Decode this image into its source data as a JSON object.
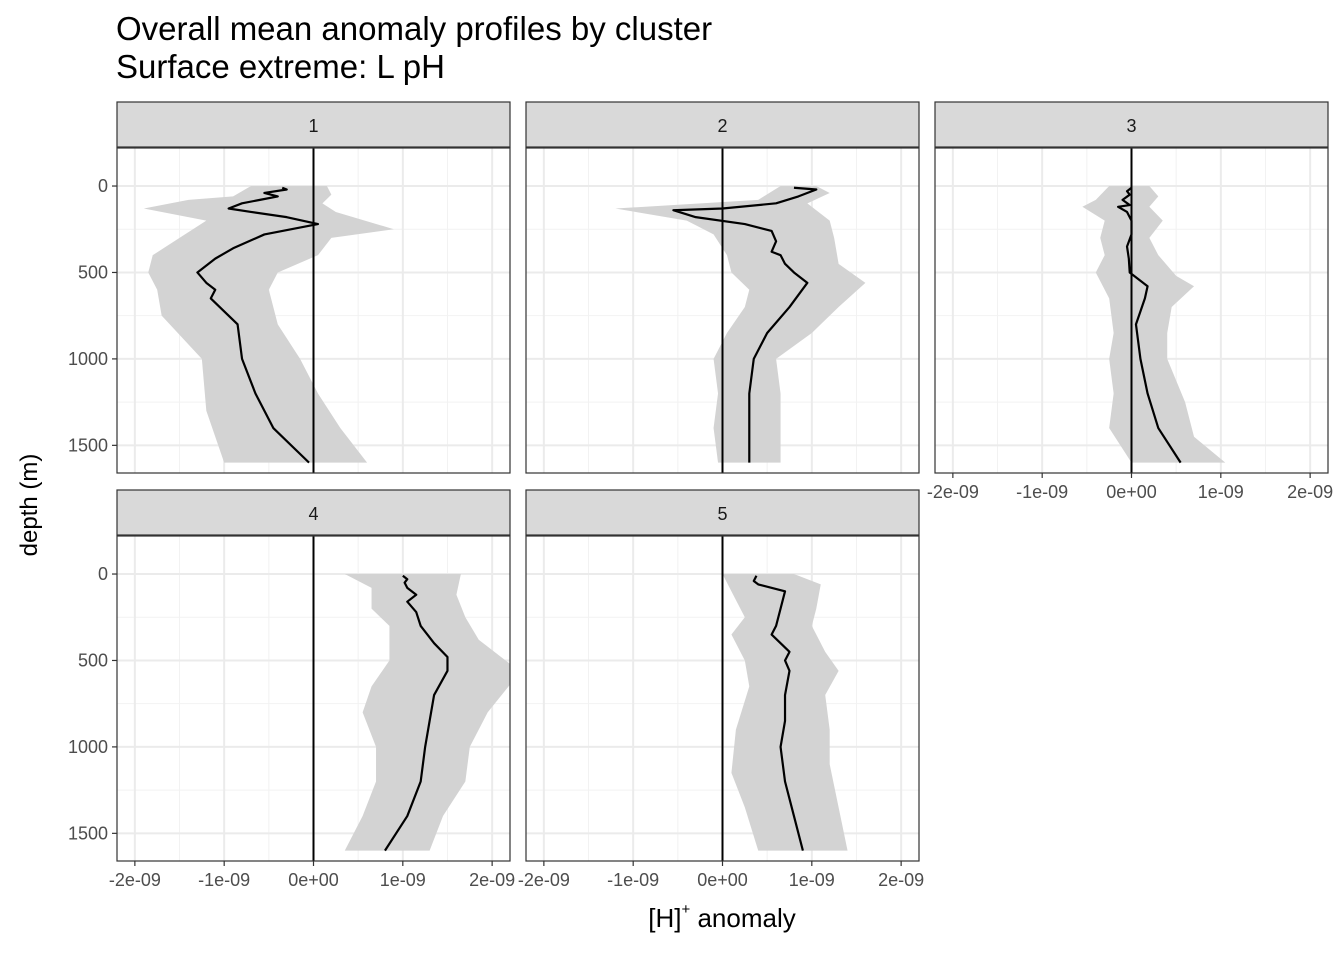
{
  "chart_data": {
    "type": "line",
    "title": "Overall mean anomaly profiles by cluster",
    "subtitle": "Surface extreme: L pH",
    "xlabel_main": "[H]",
    "xlabel_sup": "+",
    "xlabel_rest": " anomaly",
    "ylabel": "depth (m)",
    "xlim": [
      -2.2e-09,
      2.2e-09
    ],
    "ylim": [
      1660,
      -220
    ],
    "y_reversed": true,
    "x_ticks": [
      -2e-09,
      -1e-09,
      0,
      1e-09,
      2e-09
    ],
    "x_tick_labels": [
      "-2e-09",
      "-1e-09",
      "0e+00",
      "1e-09",
      "2e-09"
    ],
    "y_ticks": [
      0,
      500,
      1000,
      1500
    ],
    "y_tick_labels": [
      "0",
      "500",
      "1000",
      "1500"
    ],
    "vline_x": 0,
    "panels": [
      {
        "label": "1",
        "mean": [
          [
            -3.5e-10,
            10
          ],
          [
            -3e-10,
            20
          ],
          [
            -5.5e-10,
            40
          ],
          [
            -4e-10,
            60
          ],
          [
            -6e-10,
            80
          ],
          [
            -8e-10,
            100
          ],
          [
            -9.5e-10,
            130
          ],
          [
            -7e-10,
            150
          ],
          [
            -3e-10,
            180
          ],
          [
            5e-11,
            220
          ],
          [
            -5.5e-10,
            280
          ],
          [
            -9e-10,
            360
          ],
          [
            -1.1e-09,
            420
          ],
          [
            -1.3e-09,
            500
          ],
          [
            -1.2e-09,
            560
          ],
          [
            -1.1e-09,
            600
          ],
          [
            -1.15e-09,
            650
          ],
          [
            -1.05e-09,
            700
          ],
          [
            -8.5e-10,
            800
          ],
          [
            -8e-10,
            1000
          ],
          [
            -6.5e-10,
            1200
          ],
          [
            -4.5e-10,
            1400
          ],
          [
            -5e-11,
            1600
          ]
        ],
        "upper": [
          [
            1.5e-10,
            0
          ],
          [
            2e-10,
            50
          ],
          [
            1e-10,
            100
          ],
          [
            2.5e-10,
            150
          ],
          [
            9e-10,
            250
          ],
          [
            2e-10,
            300
          ],
          [
            5e-11,
            400
          ],
          [
            -4e-10,
            500
          ],
          [
            -5e-10,
            600
          ],
          [
            -4e-10,
            800
          ],
          [
            -1.5e-10,
            1000
          ],
          [
            5e-11,
            1200
          ],
          [
            3e-10,
            1400
          ],
          [
            6e-10,
            1600
          ]
        ],
        "lower": [
          [
            -7e-10,
            0
          ],
          [
            -9e-10,
            60
          ],
          [
            -1.4e-09,
            80
          ],
          [
            -1.9e-09,
            130
          ],
          [
            -1.2e-09,
            200
          ],
          [
            -1.5e-09,
            300
          ],
          [
            -1.8e-09,
            400
          ],
          [
            -1.85e-09,
            500
          ],
          [
            -1.75e-09,
            600
          ],
          [
            -1.7e-09,
            750
          ],
          [
            -1.25e-09,
            1000
          ],
          [
            -1.2e-09,
            1300
          ],
          [
            -1e-09,
            1600
          ]
        ]
      },
      {
        "label": "2",
        "mean": [
          [
            8e-10,
            10
          ],
          [
            1.05e-09,
            20
          ],
          [
            8.5e-10,
            60
          ],
          [
            6e-10,
            100
          ],
          [
            0.0,
            130
          ],
          [
            -5.5e-10,
            140
          ],
          [
            -3e-10,
            180
          ],
          [
            2.5e-10,
            220
          ],
          [
            5.5e-10,
            260
          ],
          [
            6e-10,
            320
          ],
          [
            5.5e-10,
            380
          ],
          [
            6.5e-10,
            400
          ],
          [
            7e-10,
            450
          ],
          [
            8e-10,
            500
          ],
          [
            9.5e-10,
            560
          ],
          [
            7.5e-10,
            700
          ],
          [
            5e-10,
            850
          ],
          [
            3.5e-10,
            1000
          ],
          [
            3e-10,
            1200
          ],
          [
            3e-10,
            1400
          ],
          [
            3e-10,
            1600
          ]
        ],
        "upper": [
          [
            1.05e-09,
            0
          ],
          [
            1.2e-09,
            40
          ],
          [
            9.5e-10,
            100
          ],
          [
            1.2e-09,
            200
          ],
          [
            1.25e-09,
            300
          ],
          [
            1.3e-09,
            450
          ],
          [
            1.6e-09,
            560
          ],
          [
            1.3e-09,
            700
          ],
          [
            1e-09,
            850
          ],
          [
            6e-10,
            1000
          ],
          [
            6.5e-10,
            1200
          ],
          [
            6.5e-10,
            1600
          ]
        ],
        "lower": [
          [
            6.5e-10,
            0
          ],
          [
            4e-10,
            80
          ],
          [
            -1.2e-09,
            130
          ],
          [
            -4e-10,
            200
          ],
          [
            -1e-10,
            280
          ],
          [
            5e-11,
            400
          ],
          [
            1e-10,
            500
          ],
          [
            3e-10,
            600
          ],
          [
            2.5e-10,
            700
          ],
          [
            5e-11,
            850
          ],
          [
            -1e-10,
            1000
          ],
          [
            -5e-11,
            1200
          ],
          [
            -1e-10,
            1400
          ],
          [
            -5e-11,
            1600
          ]
        ]
      },
      {
        "label": "3",
        "mean": [
          [
            0.0,
            10
          ],
          [
            -5e-11,
            30
          ],
          [
            -2e-11,
            50
          ],
          [
            -1e-10,
            80
          ],
          [
            -2e-11,
            110
          ],
          [
            -1.5e-10,
            120
          ],
          [
            -5e-11,
            150
          ],
          [
            0.0,
            200
          ],
          [
            0.0,
            280
          ],
          [
            -5e-11,
            350
          ],
          [
            -3e-11,
            420
          ],
          [
            -2e-11,
            500
          ],
          [
            1.8e-10,
            580
          ],
          [
            1.5e-10,
            650
          ],
          [
            5e-11,
            800
          ],
          [
            1e-10,
            1000
          ],
          [
            1.8e-10,
            1200
          ],
          [
            3e-10,
            1400
          ],
          [
            5.5e-10,
            1600
          ]
        ],
        "upper": [
          [
            2e-10,
            0
          ],
          [
            3e-10,
            60
          ],
          [
            2e-10,
            120
          ],
          [
            3.5e-10,
            200
          ],
          [
            2e-10,
            300
          ],
          [
            3e-10,
            400
          ],
          [
            5e-10,
            520
          ],
          [
            7e-10,
            580
          ],
          [
            4.5e-10,
            700
          ],
          [
            4e-10,
            850
          ],
          [
            4e-10,
            1000
          ],
          [
            6e-10,
            1250
          ],
          [
            7e-10,
            1450
          ],
          [
            1.05e-09,
            1600
          ]
        ],
        "lower": [
          [
            -2.5e-10,
            0
          ],
          [
            -4e-10,
            80
          ],
          [
            -5.5e-10,
            120
          ],
          [
            -3e-10,
            200
          ],
          [
            -3.5e-10,
            300
          ],
          [
            -3e-10,
            400
          ],
          [
            -4e-10,
            500
          ],
          [
            -2.5e-10,
            650
          ],
          [
            -2e-10,
            850
          ],
          [
            -2.5e-10,
            1000
          ],
          [
            -2e-10,
            1200
          ],
          [
            -2.5e-10,
            1400
          ],
          [
            0.0,
            1600
          ]
        ]
      },
      {
        "label": "4",
        "mean": [
          [
            1e-09,
            10
          ],
          [
            1.05e-09,
            30
          ],
          [
            1.02e-09,
            50
          ],
          [
            1.05e-09,
            80
          ],
          [
            1.15e-09,
            120
          ],
          [
            1.05e-09,
            160
          ],
          [
            1.15e-09,
            220
          ],
          [
            1.2e-09,
            300
          ],
          [
            1.35e-09,
            400
          ],
          [
            1.5e-09,
            480
          ],
          [
            1.5e-09,
            560
          ],
          [
            1.35e-09,
            700
          ],
          [
            1.3e-09,
            850
          ],
          [
            1.25e-09,
            1000
          ],
          [
            1.2e-09,
            1200
          ],
          [
            1.05e-09,
            1400
          ],
          [
            8e-10,
            1600
          ]
        ],
        "upper": [
          [
            1.65e-09,
            0
          ],
          [
            1.6e-09,
            120
          ],
          [
            1.7e-09,
            250
          ],
          [
            1.85e-09,
            380
          ],
          [
            2.2e-09,
            520
          ],
          [
            2.2e-09,
            640
          ],
          [
            1.95e-09,
            800
          ],
          [
            1.75e-09,
            1000
          ],
          [
            1.7e-09,
            1200
          ],
          [
            1.45e-09,
            1400
          ],
          [
            1.3e-09,
            1600
          ]
        ],
        "lower": [
          [
            3.5e-10,
            0
          ],
          [
            6.5e-10,
            80
          ],
          [
            6.5e-10,
            200
          ],
          [
            8.5e-10,
            300
          ],
          [
            8.5e-10,
            500
          ],
          [
            6.5e-10,
            650
          ],
          [
            5.5e-10,
            800
          ],
          [
            7e-10,
            1000
          ],
          [
            7e-10,
            1200
          ],
          [
            5.5e-10,
            1400
          ],
          [
            3.5e-10,
            1600
          ]
        ]
      },
      {
        "label": "5",
        "mean": [
          [
            3.8e-10,
            10
          ],
          [
            3.5e-10,
            40
          ],
          [
            4e-10,
            60
          ],
          [
            7e-10,
            100
          ],
          [
            6.5e-10,
            200
          ],
          [
            6e-10,
            300
          ],
          [
            5.5e-10,
            350
          ],
          [
            6.5e-10,
            400
          ],
          [
            7.5e-10,
            450
          ],
          [
            7e-10,
            500
          ],
          [
            7.5e-10,
            560
          ],
          [
            7e-10,
            700
          ],
          [
            7e-10,
            850
          ],
          [
            6.5e-10,
            1000
          ],
          [
            7e-10,
            1200
          ],
          [
            8e-10,
            1400
          ],
          [
            9e-10,
            1600
          ]
        ],
        "upper": [
          [
            8e-10,
            0
          ],
          [
            1.1e-09,
            60
          ],
          [
            1.05e-09,
            200
          ],
          [
            1e-09,
            300
          ],
          [
            1.15e-09,
            450
          ],
          [
            1.3e-09,
            560
          ],
          [
            1.15e-09,
            700
          ],
          [
            1.2e-09,
            900
          ],
          [
            1.2e-09,
            1100
          ],
          [
            1.3e-09,
            1350
          ],
          [
            1.4e-09,
            1600
          ]
        ],
        "lower": [
          [
            0.0,
            0
          ],
          [
            1e-10,
            100
          ],
          [
            2.5e-10,
            250
          ],
          [
            1e-10,
            350
          ],
          [
            2.5e-10,
            500
          ],
          [
            3e-10,
            650
          ],
          [
            1.5e-10,
            900
          ],
          [
            1e-10,
            1150
          ],
          [
            2.5e-10,
            1350
          ],
          [
            4e-10,
            1600
          ]
        ]
      }
    ]
  }
}
